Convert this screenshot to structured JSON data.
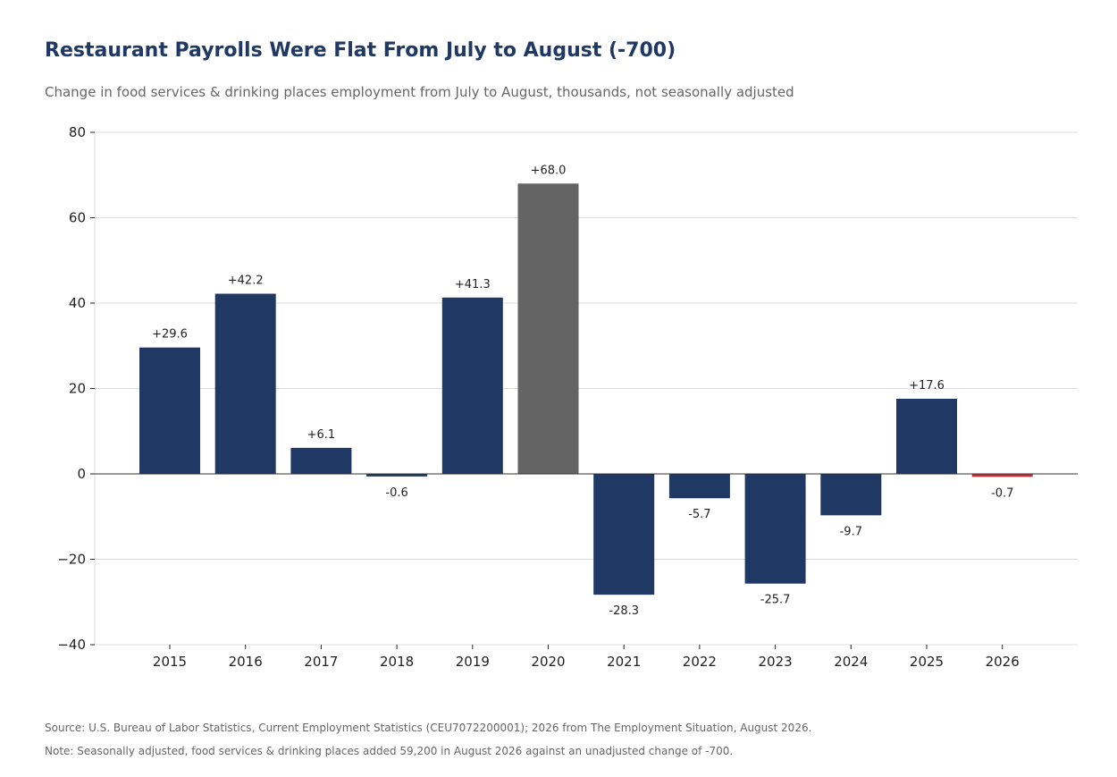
{
  "header": {
    "title": "Restaurant Payrolls Were Flat From July to August (-700)",
    "subtitle": "Change in food services & drinking places employment from July to August, thousands, not seasonally adjusted"
  },
  "footer": {
    "source": "Source: U.S. Bureau of Labor Statistics, Current Employment Statistics (CEU7072200001); 2026 from The Employment Situation, August 2026.",
    "note": "Note: Seasonally adjusted, food services & drinking places added 59,200 in August 2026 against an unadjusted change of -700."
  },
  "colors": {
    "default_bar": "#1f3864",
    "highlight_2020": "#646464",
    "highlight_2026": "#c0323c",
    "grid": "#dddddd",
    "axis_text": "#222222"
  },
  "chart_data": {
    "type": "bar",
    "categories": [
      "2015",
      "2016",
      "2017",
      "2018",
      "2019",
      "2020",
      "2021",
      "2022",
      "2023",
      "2024",
      "2025",
      "2026"
    ],
    "values": [
      29.6,
      42.2,
      6.1,
      -0.6,
      41.3,
      68.0,
      -28.3,
      -5.7,
      -25.7,
      -9.7,
      17.6,
      -0.7
    ],
    "data_labels": [
      "+29.6",
      "+42.2",
      "+6.1",
      "-0.6",
      "+41.3",
      "+68.0",
      "-28.3",
      "-5.7",
      "-25.7",
      "-9.7",
      "+17.6",
      "-0.7"
    ],
    "bar_colors": [
      "default_bar",
      "default_bar",
      "default_bar",
      "default_bar",
      "default_bar",
      "highlight_2020",
      "default_bar",
      "default_bar",
      "default_bar",
      "default_bar",
      "default_bar",
      "highlight_2026"
    ],
    "ylim": [
      -40,
      80
    ],
    "yticks": [
      80,
      60,
      40,
      20,
      0,
      -20,
      -40
    ],
    "ytick_labels": [
      "80",
      "60",
      "40",
      "20",
      "0",
      "−20",
      "−40"
    ],
    "grid": true,
    "xlabel": "",
    "ylabel": ""
  }
}
